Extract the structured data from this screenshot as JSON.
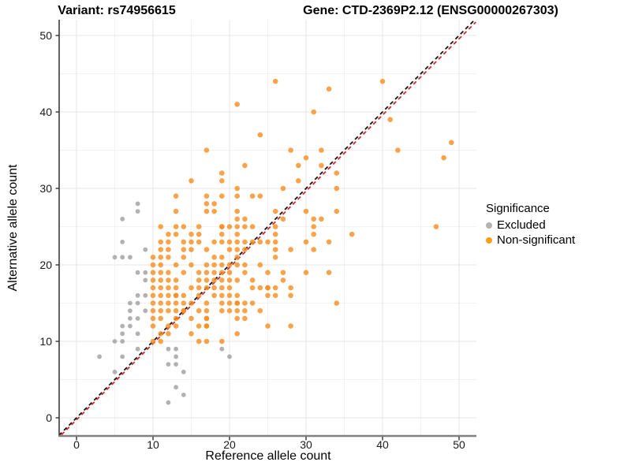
{
  "titles": {
    "variant": "Variant: rs74956615",
    "gene": "Gene: CTD-2369P2.12 (ENSG00000267303)"
  },
  "axes": {
    "x": {
      "label": "Reference allele count",
      "ticks": [
        0,
        10,
        20,
        30,
        40,
        50
      ],
      "minor_ticks": [
        5,
        15,
        25,
        35,
        45
      ],
      "range": [
        -2.3,
        52.2
      ]
    },
    "y": {
      "label": "Alternative allele count",
      "ticks": [
        0,
        10,
        20,
        30,
        40,
        50
      ],
      "minor_ticks": [
        5,
        15,
        25,
        35,
        45
      ],
      "range": [
        -2.3,
        52.1
      ]
    }
  },
  "legend": {
    "title": "Significance",
    "items": [
      {
        "label": "Excluded",
        "color": "#b3b3b3"
      },
      {
        "label": "Non-significant",
        "color": "#ff9e16"
      }
    ]
  },
  "colors": {
    "grid_major": "#e4e4e4",
    "grid_minor": "#f2f2f2",
    "axis_line_left": "#3a3a3a",
    "axis_line_bottom": "#808080",
    "tick_mark": "#333333",
    "identity_line": "#141414",
    "fit_line": "#d42a2a",
    "excluded_point": "#9e9e9e",
    "nonsignificant_point": "#f78c1e"
  },
  "chart_data": {
    "type": "scatter",
    "title_left": "Variant: rs74956615",
    "title_right": "Gene: CTD-2369P2.12 (ENSG00000267303)",
    "xlabel": "Reference allele count",
    "ylabel": "Alternative allele count",
    "xlim": [
      -2.3,
      52.2
    ],
    "ylim": [
      -2.3,
      52.1
    ],
    "grid": true,
    "legend_position": "right",
    "legend_title": "Significance",
    "lines": [
      {
        "name": "identity",
        "style": "dashed",
        "color": "#141414",
        "from": [
          -2.3,
          -2.3
        ],
        "to": [
          52.2,
          52.2
        ]
      },
      {
        "name": "fit",
        "style": "dashed",
        "color": "#d42a2a",
        "from": [
          -2.3,
          -2.55
        ],
        "to": [
          52.2,
          51.75
        ]
      }
    ],
    "series": [
      {
        "name": "Excluded",
        "color": "#9e9e9e",
        "opacity": 0.8,
        "radius": 2.9,
        "points": [
          [
            3,
            8
          ],
          [
            5,
            6
          ],
          [
            5,
            10
          ],
          [
            5,
            21
          ],
          [
            6,
            8
          ],
          [
            6,
            10
          ],
          [
            6,
            11
          ],
          [
            6,
            12
          ],
          [
            6,
            21
          ],
          [
            6,
            23
          ],
          [
            6,
            26
          ],
          [
            7,
            12
          ],
          [
            7,
            13
          ],
          [
            7,
            14
          ],
          [
            7,
            15
          ],
          [
            7,
            21
          ],
          [
            8,
            9
          ],
          [
            8,
            11
          ],
          [
            8,
            13
          ],
          [
            8,
            15
          ],
          [
            8,
            16
          ],
          [
            8,
            19
          ],
          [
            8,
            27
          ],
          [
            8,
            28
          ],
          [
            9,
            14
          ],
          [
            9,
            16
          ],
          [
            9,
            18
          ],
          [
            9,
            19
          ],
          [
            9,
            22
          ],
          [
            12,
            2
          ],
          [
            12,
            7
          ],
          [
            12,
            9
          ],
          [
            13,
            4
          ],
          [
            13,
            7
          ],
          [
            13,
            8
          ],
          [
            13,
            9
          ],
          [
            14,
            3
          ],
          [
            14,
            6
          ],
          [
            19,
            9
          ],
          [
            20,
            8
          ]
        ]
      },
      {
        "name": "Non-significant",
        "color": "#f78c1e",
        "opacity": 0.8,
        "radius": 3.3,
        "points": [
          [
            26,
            44
          ],
          [
            40,
            44
          ],
          [
            33,
            43
          ],
          [
            21,
            41
          ],
          [
            31,
            40
          ],
          [
            41,
            39
          ],
          [
            24,
            37
          ],
          [
            49,
            36
          ],
          [
            17,
            35
          ],
          [
            28,
            35
          ],
          [
            32,
            35
          ],
          [
            42,
            35
          ],
          [
            30,
            34
          ],
          [
            48,
            34
          ],
          [
            22,
            33
          ],
          [
            29,
            33
          ],
          [
            32,
            33
          ],
          [
            19,
            32
          ],
          [
            34,
            32
          ],
          [
            15,
            31
          ],
          [
            19,
            31
          ],
          [
            29,
            31
          ],
          [
            21,
            30
          ],
          [
            27,
            30
          ],
          [
            34,
            30
          ],
          [
            13,
            29
          ],
          [
            17,
            29
          ],
          [
            19,
            29
          ],
          [
            21,
            29
          ],
          [
            23,
            29
          ],
          [
            24,
            29
          ],
          [
            17,
            28
          ],
          [
            18,
            28
          ],
          [
            13,
            27
          ],
          [
            17,
            27
          ],
          [
            18,
            27
          ],
          [
            21,
            27
          ],
          [
            26,
            27
          ],
          [
            30,
            27
          ],
          [
            34,
            27
          ],
          [
            21,
            26
          ],
          [
            22,
            26
          ],
          [
            27,
            26
          ],
          [
            31,
            26
          ],
          [
            32,
            26
          ],
          [
            11,
            25
          ],
          [
            13,
            25
          ],
          [
            14,
            25
          ],
          [
            16,
            25
          ],
          [
            19,
            25
          ],
          [
            19,
            25
          ],
          [
            20,
            25
          ],
          [
            21,
            25
          ],
          [
            22,
            25
          ],
          [
            23,
            25
          ],
          [
            26,
            25
          ],
          [
            31,
            25
          ],
          [
            47,
            25
          ],
          [
            12,
            24
          ],
          [
            13,
            24
          ],
          [
            15,
            24
          ],
          [
            16,
            24
          ],
          [
            19,
            24
          ],
          [
            21,
            24
          ],
          [
            26,
            24
          ],
          [
            31,
            24
          ],
          [
            36,
            24
          ],
          [
            11,
            23
          ],
          [
            12,
            23
          ],
          [
            14,
            23
          ],
          [
            15,
            23
          ],
          [
            16,
            23
          ],
          [
            18,
            23
          ],
          [
            19,
            23
          ],
          [
            20,
            23
          ],
          [
            21,
            23
          ],
          [
            22,
            23
          ],
          [
            23,
            23
          ],
          [
            24,
            23
          ],
          [
            25,
            23
          ],
          [
            26,
            23
          ],
          [
            30,
            23
          ],
          [
            33,
            23
          ],
          [
            11,
            22
          ],
          [
            12,
            22
          ],
          [
            14,
            22
          ],
          [
            15,
            22
          ],
          [
            17,
            22
          ],
          [
            20,
            22
          ],
          [
            21,
            22
          ],
          [
            22,
            22
          ],
          [
            26,
            22
          ],
          [
            28,
            22
          ],
          [
            31,
            22
          ],
          [
            10,
            21
          ],
          [
            11,
            21
          ],
          [
            12,
            21
          ],
          [
            14,
            21
          ],
          [
            18,
            21
          ],
          [
            19,
            21
          ],
          [
            21,
            21
          ],
          [
            26,
            21
          ],
          [
            10,
            20
          ],
          [
            11,
            20
          ],
          [
            13,
            20
          ],
          [
            15,
            20
          ],
          [
            17,
            20
          ],
          [
            18,
            20
          ],
          [
            19,
            20
          ],
          [
            20,
            20
          ],
          [
            21,
            20
          ],
          [
            22,
            20
          ],
          [
            24,
            20
          ],
          [
            10,
            19
          ],
          [
            11,
            19
          ],
          [
            12,
            19
          ],
          [
            14,
            19
          ],
          [
            16,
            19
          ],
          [
            17,
            19
          ],
          [
            18,
            19
          ],
          [
            19,
            19
          ],
          [
            20,
            19
          ],
          [
            22,
            19
          ],
          [
            25,
            19
          ],
          [
            27,
            19
          ],
          [
            30,
            19
          ],
          [
            33,
            19
          ],
          [
            10,
            18
          ],
          [
            11,
            18
          ],
          [
            12,
            18
          ],
          [
            13,
            18
          ],
          [
            16,
            18
          ],
          [
            17,
            18
          ],
          [
            18,
            18
          ],
          [
            19,
            18
          ],
          [
            20,
            18
          ],
          [
            21,
            18
          ],
          [
            23,
            18
          ],
          [
            27,
            18
          ],
          [
            10,
            17
          ],
          [
            11,
            17
          ],
          [
            12,
            17
          ],
          [
            13,
            17
          ],
          [
            15,
            17
          ],
          [
            16,
            17
          ],
          [
            17,
            17
          ],
          [
            18,
            17
          ],
          [
            19,
            17
          ],
          [
            20,
            17
          ],
          [
            23,
            17
          ],
          [
            24,
            17
          ],
          [
            25,
            17
          ],
          [
            25,
            17
          ],
          [
            26,
            17
          ],
          [
            28,
            17
          ],
          [
            10,
            16
          ],
          [
            11,
            16
          ],
          [
            12,
            16
          ],
          [
            13,
            16
          ],
          [
            13,
            16
          ],
          [
            14,
            16
          ],
          [
            16,
            16
          ],
          [
            18,
            16
          ],
          [
            19,
            16
          ],
          [
            20,
            16
          ],
          [
            21,
            16
          ],
          [
            25,
            16
          ],
          [
            26,
            16
          ],
          [
            28,
            16
          ],
          [
            10,
            15
          ],
          [
            11,
            15
          ],
          [
            12,
            15
          ],
          [
            13,
            15
          ],
          [
            14,
            15
          ],
          [
            15,
            15
          ],
          [
            17,
            15
          ],
          [
            19,
            15
          ],
          [
            20,
            15
          ],
          [
            21,
            15
          ],
          [
            21,
            15
          ],
          [
            22,
            15
          ],
          [
            23,
            15
          ],
          [
            34,
            15
          ],
          [
            10,
            14
          ],
          [
            11,
            14
          ],
          [
            12,
            14
          ],
          [
            13,
            14
          ],
          [
            14,
            14
          ],
          [
            14,
            14
          ],
          [
            16,
            14
          ],
          [
            17,
            14
          ],
          [
            19,
            14
          ],
          [
            20,
            14
          ],
          [
            21,
            14
          ],
          [
            22,
            14
          ],
          [
            24,
            14
          ],
          [
            10,
            13
          ],
          [
            11,
            13
          ],
          [
            13,
            13
          ],
          [
            15,
            13
          ],
          [
            17,
            13
          ],
          [
            17,
            13
          ],
          [
            21,
            13
          ],
          [
            22,
            13
          ],
          [
            10,
            12
          ],
          [
            12,
            12
          ],
          [
            13,
            12
          ],
          [
            16,
            12
          ],
          [
            17,
            12
          ],
          [
            17,
            12
          ],
          [
            25,
            12
          ],
          [
            28,
            12
          ],
          [
            11,
            11
          ],
          [
            12,
            11
          ],
          [
            15,
            11
          ],
          [
            21,
            11
          ],
          [
            10,
            10
          ],
          [
            11,
            10
          ],
          [
            16,
            10
          ],
          [
            17,
            10
          ],
          [
            19,
            10
          ]
        ]
      }
    ]
  }
}
